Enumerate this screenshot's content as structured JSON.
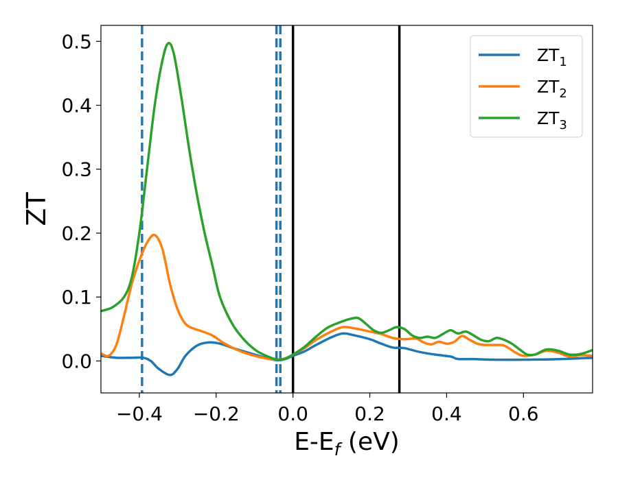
{
  "chart_data": {
    "type": "line",
    "xlabel_main": "E-E",
    "xlabel_sub": "f",
    "xlabel_unit": " (eV)",
    "ylabel": "ZT",
    "xlim": [
      -0.5,
      0.78
    ],
    "ylim": [
      -0.05,
      0.525
    ],
    "xticks": [
      -0.4,
      -0.2,
      0.0,
      0.2,
      0.4,
      0.6
    ],
    "xtick_labels": [
      "−0.4",
      "−0.2",
      "0.0",
      "0.2",
      "0.4",
      "0.6"
    ],
    "yticks": [
      0.0,
      0.1,
      0.2,
      0.3,
      0.4,
      0.5
    ],
    "ytick_labels": [
      "0.0",
      "0.1",
      "0.2",
      "0.3",
      "0.4",
      "0.5"
    ],
    "grid": false,
    "legend_position": "top-right",
    "vlines": [
      {
        "x": -0.393,
        "style": "dashed",
        "color": "#1f77b4"
      },
      {
        "x": -0.043,
        "style": "dashed",
        "color": "#1f77b4"
      },
      {
        "x": -0.033,
        "style": "dashed",
        "color": "#1f77b4"
      },
      {
        "x": 0.0,
        "style": "solid",
        "color": "#000000"
      },
      {
        "x": 0.277,
        "style": "solid",
        "color": "#000000"
      }
    ],
    "series": [
      {
        "name": "ZT",
        "subscript": "1",
        "color": "#1f77b4",
        "points": [
          [
            -0.5,
            0.008
          ],
          [
            -0.46,
            0.005
          ],
          [
            -0.42,
            0.005
          ],
          [
            -0.39,
            0.005
          ],
          [
            -0.37,
            0.0
          ],
          [
            -0.35,
            -0.012
          ],
          [
            -0.32,
            -0.022
          ],
          [
            -0.3,
            -0.012
          ],
          [
            -0.28,
            0.008
          ],
          [
            -0.25,
            0.024
          ],
          [
            -0.22,
            0.029
          ],
          [
            -0.19,
            0.027
          ],
          [
            -0.15,
            0.019
          ],
          [
            -0.1,
            0.01
          ],
          [
            -0.06,
            0.003
          ],
          [
            -0.04,
            0.001
          ],
          [
            -0.02,
            0.003
          ],
          [
            0.0,
            0.008
          ],
          [
            0.03,
            0.015
          ],
          [
            0.06,
            0.025
          ],
          [
            0.1,
            0.037
          ],
          [
            0.13,
            0.043
          ],
          [
            0.16,
            0.04
          ],
          [
            0.2,
            0.034
          ],
          [
            0.23,
            0.027
          ],
          [
            0.26,
            0.021
          ],
          [
            0.29,
            0.02
          ],
          [
            0.33,
            0.014
          ],
          [
            0.37,
            0.01
          ],
          [
            0.41,
            0.007
          ],
          [
            0.43,
            0.003
          ],
          [
            0.47,
            0.003
          ],
          [
            0.52,
            0.002
          ],
          [
            0.6,
            0.002
          ],
          [
            0.7,
            0.003
          ],
          [
            0.78,
            0.005
          ]
        ]
      },
      {
        "name": "ZT",
        "subscript": "2",
        "color": "#ff7f0e",
        "points": [
          [
            -0.5,
            0.012
          ],
          [
            -0.48,
            0.008
          ],
          [
            -0.46,
            0.025
          ],
          [
            -0.44,
            0.07
          ],
          [
            -0.42,
            0.12
          ],
          [
            -0.4,
            0.157
          ],
          [
            -0.38,
            0.185
          ],
          [
            -0.36,
            0.197
          ],
          [
            -0.34,
            0.175
          ],
          [
            -0.32,
            0.12
          ],
          [
            -0.3,
            0.08
          ],
          [
            -0.28,
            0.058
          ],
          [
            -0.26,
            0.051
          ],
          [
            -0.24,
            0.047
          ],
          [
            -0.21,
            0.04
          ],
          [
            -0.18,
            0.028
          ],
          [
            -0.14,
            0.016
          ],
          [
            -0.1,
            0.008
          ],
          [
            -0.06,
            0.003
          ],
          [
            -0.04,
            0.002
          ],
          [
            -0.02,
            0.004
          ],
          [
            0.0,
            0.01
          ],
          [
            0.03,
            0.02
          ],
          [
            0.06,
            0.033
          ],
          [
            0.1,
            0.046
          ],
          [
            0.13,
            0.053
          ],
          [
            0.16,
            0.051
          ],
          [
            0.2,
            0.046
          ],
          [
            0.23,
            0.042
          ],
          [
            0.26,
            0.036
          ],
          [
            0.29,
            0.034
          ],
          [
            0.32,
            0.035
          ],
          [
            0.34,
            0.029
          ],
          [
            0.36,
            0.026
          ],
          [
            0.38,
            0.03
          ],
          [
            0.4,
            0.027
          ],
          [
            0.42,
            0.03
          ],
          [
            0.44,
            0.039
          ],
          [
            0.46,
            0.033
          ],
          [
            0.48,
            0.027
          ],
          [
            0.5,
            0.025
          ],
          [
            0.53,
            0.025
          ],
          [
            0.55,
            0.024
          ],
          [
            0.58,
            0.013
          ],
          [
            0.6,
            0.008
          ],
          [
            0.63,
            0.01
          ],
          [
            0.66,
            0.016
          ],
          [
            0.69,
            0.013
          ],
          [
            0.72,
            0.007
          ],
          [
            0.75,
            0.009
          ],
          [
            0.78,
            0.008
          ]
        ]
      },
      {
        "name": "ZT",
        "subscript": "3",
        "color": "#2ca02c",
        "points": [
          [
            -0.5,
            0.078
          ],
          [
            -0.47,
            0.084
          ],
          [
            -0.44,
            0.1
          ],
          [
            -0.42,
            0.13
          ],
          [
            -0.4,
            0.2
          ],
          [
            -0.38,
            0.3
          ],
          [
            -0.36,
            0.4
          ],
          [
            -0.34,
            0.47
          ],
          [
            -0.325,
            0.497
          ],
          [
            -0.31,
            0.48
          ],
          [
            -0.29,
            0.41
          ],
          [
            -0.27,
            0.33
          ],
          [
            -0.25,
            0.26
          ],
          [
            -0.23,
            0.2
          ],
          [
            -0.21,
            0.15
          ],
          [
            -0.19,
            0.1
          ],
          [
            -0.16,
            0.06
          ],
          [
            -0.13,
            0.035
          ],
          [
            -0.1,
            0.018
          ],
          [
            -0.07,
            0.008
          ],
          [
            -0.04,
            0.002
          ],
          [
            -0.02,
            0.004
          ],
          [
            0.0,
            0.01
          ],
          [
            0.03,
            0.022
          ],
          [
            0.06,
            0.038
          ],
          [
            0.09,
            0.052
          ],
          [
            0.12,
            0.06
          ],
          [
            0.15,
            0.066
          ],
          [
            0.17,
            0.067
          ],
          [
            0.19,
            0.058
          ],
          [
            0.21,
            0.048
          ],
          [
            0.23,
            0.044
          ],
          [
            0.25,
            0.048
          ],
          [
            0.27,
            0.053
          ],
          [
            0.29,
            0.05
          ],
          [
            0.31,
            0.04
          ],
          [
            0.33,
            0.036
          ],
          [
            0.35,
            0.038
          ],
          [
            0.37,
            0.036
          ],
          [
            0.39,
            0.042
          ],
          [
            0.41,
            0.048
          ],
          [
            0.43,
            0.043
          ],
          [
            0.45,
            0.046
          ],
          [
            0.47,
            0.04
          ],
          [
            0.49,
            0.033
          ],
          [
            0.51,
            0.031
          ],
          [
            0.53,
            0.036
          ],
          [
            0.55,
            0.033
          ],
          [
            0.57,
            0.027
          ],
          [
            0.59,
            0.018
          ],
          [
            0.61,
            0.01
          ],
          [
            0.63,
            0.01
          ],
          [
            0.66,
            0.018
          ],
          [
            0.69,
            0.016
          ],
          [
            0.72,
            0.01
          ],
          [
            0.75,
            0.011
          ],
          [
            0.78,
            0.017
          ]
        ]
      }
    ]
  }
}
